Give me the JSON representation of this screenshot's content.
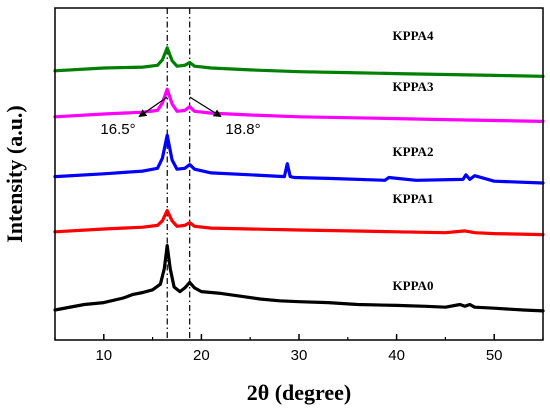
{
  "chart_data": {
    "type": "line",
    "xlabel": "2θ (degree)",
    "ylabel": "Intensity (a.u.)",
    "xlim": [
      5,
      55
    ],
    "xticks": [
      10,
      20,
      30,
      40,
      50
    ],
    "yticks_shown": false,
    "grid": false,
    "reference_lines": [
      {
        "x": 16.5,
        "label": "16.5°",
        "style": "dash-dot"
      },
      {
        "x": 18.8,
        "label": "18.8°",
        "style": "dash-dot"
      }
    ],
    "series": [
      {
        "name": "KPPA0",
        "color": "#000000",
        "baseline": 0,
        "x": [
          5,
          8,
          10,
          12,
          13,
          14,
          15,
          15.8,
          16.2,
          16.5,
          16.8,
          17.2,
          17.8,
          18.3,
          18.8,
          19.3,
          20,
          21,
          22,
          24,
          26,
          28,
          30,
          33,
          36,
          40,
          43,
          45,
          46.5,
          47,
          47.5,
          48,
          50,
          53,
          55
        ],
        "y": [
          0,
          6,
          8,
          13,
          17,
          19,
          22,
          28,
          45,
          70,
          45,
          25,
          20,
          24,
          30,
          24,
          20,
          19,
          18,
          15,
          12,
          10,
          9,
          8,
          6,
          5,
          4,
          3,
          6,
          4,
          6,
          3,
          2,
          0,
          -1
        ]
      },
      {
        "name": "KPPA1",
        "color": "#ff0000",
        "baseline": 85,
        "x": [
          5,
          10,
          14,
          15.5,
          16,
          16.5,
          17,
          17.5,
          18.3,
          18.8,
          19.3,
          21,
          25,
          30,
          35,
          40,
          45,
          47,
          48,
          50,
          55
        ],
        "y": [
          0,
          3,
          5,
          7,
          12,
          23,
          12,
          6,
          7,
          10,
          6,
          4,
          3,
          2,
          1,
          0,
          -1,
          1,
          -1,
          -2,
          -3
        ]
      },
      {
        "name": "KPPA2",
        "color": "#0000ff",
        "baseline": 145,
        "x": [
          5,
          10,
          14,
          15.5,
          16,
          16.5,
          17,
          17.5,
          18.3,
          18.8,
          19.3,
          21,
          25,
          28.5,
          28.8,
          29.1,
          29.5,
          33,
          38.8,
          39.2,
          42,
          46.8,
          47.1,
          47.5,
          48,
          50,
          55
        ],
        "y": [
          0,
          3,
          6,
          9,
          20,
          45,
          18,
          8,
          9,
          13,
          8,
          4,
          2,
          0,
          14,
          0,
          -1,
          -2,
          -4,
          -1,
          -4,
          -3,
          2,
          -3,
          1,
          -5,
          -7
        ]
      },
      {
        "name": "KPPA3",
        "color": "#ff00ff",
        "baseline": 210,
        "x": [
          5,
          10,
          14,
          15.5,
          16,
          16.5,
          17,
          17.5,
          18.3,
          18.8,
          19.3,
          21,
          25,
          30,
          35,
          40,
          45,
          50,
          55
        ],
        "y": [
          0,
          3,
          5,
          7,
          15,
          30,
          14,
          6,
          7,
          11,
          6,
          4,
          2,
          0,
          -1,
          -2,
          -3,
          -4,
          -5
        ]
      },
      {
        "name": "KPPA4",
        "color": "#008000",
        "baseline": 260,
        "x": [
          5,
          10,
          14,
          15.5,
          16,
          16.5,
          17,
          17.5,
          18.3,
          18.8,
          19.3,
          21,
          25,
          30,
          35,
          40,
          45,
          50,
          55
        ],
        "y": [
          0,
          3,
          4,
          6,
          12,
          25,
          11,
          5,
          6,
          9,
          5,
          3,
          1,
          -1,
          -2,
          -3,
          -4,
          -5,
          -6
        ]
      }
    ]
  }
}
